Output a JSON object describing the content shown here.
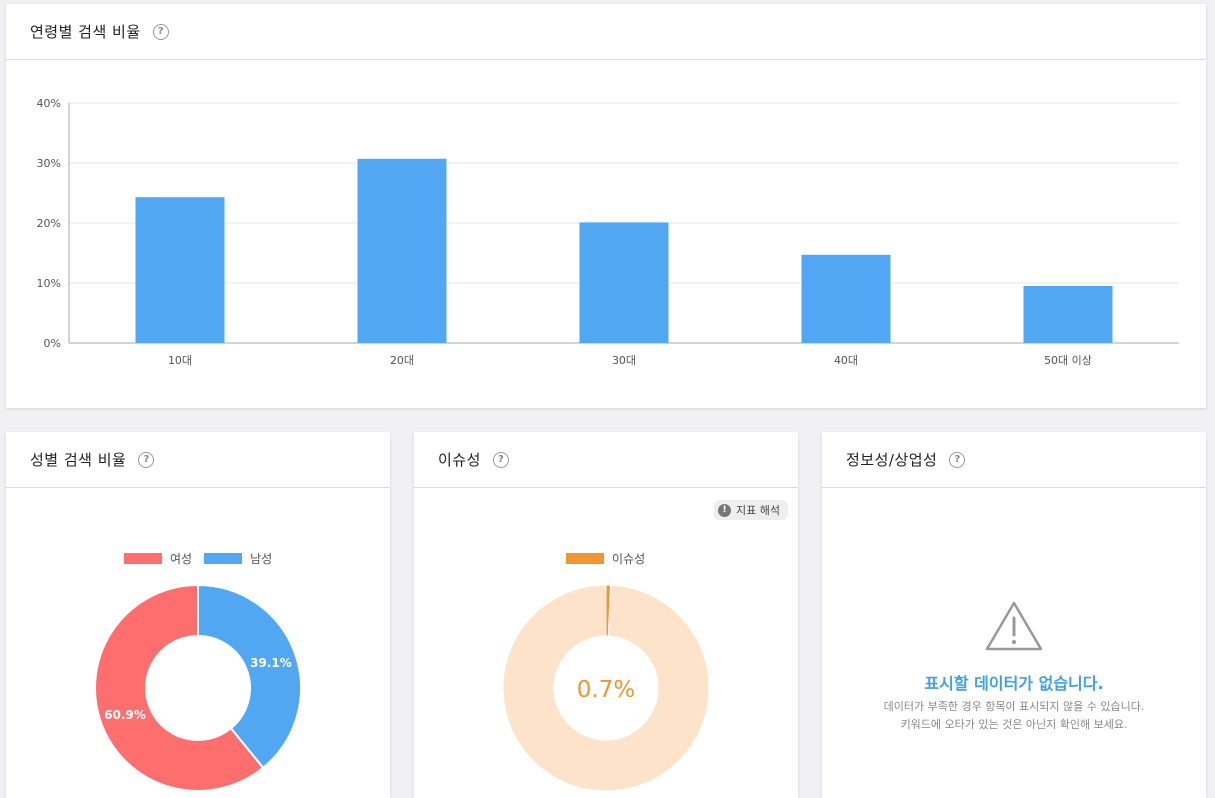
{
  "age_card": {
    "title": "연령별 검색 비율",
    "chart_data": {
      "type": "bar",
      "categories": [
        "10대",
        "20대",
        "30대",
        "40대",
        "50대 이상"
      ],
      "values": [
        24.3,
        30.7,
        20.1,
        14.7,
        9.5
      ],
      "ylim": [
        0,
        40
      ],
      "yticks": [
        "0%",
        "10%",
        "20%",
        "30%",
        "40%"
      ],
      "color": "#52a7f3",
      "grid": true
    }
  },
  "gender_card": {
    "title": "성별 검색 비율",
    "chart_data": {
      "type": "pie",
      "series": [
        {
          "name": "여성",
          "value": 60.9,
          "label": "60.9%",
          "color": "#fd6f6f"
        },
        {
          "name": "남성",
          "value": 39.1,
          "label": "39.1%",
          "color": "#52a7f3"
        }
      ]
    }
  },
  "issue_card": {
    "title": "이슈성",
    "badge_label": "지표 해석",
    "legend_label": "이슈성",
    "center_label": "0.7%",
    "value": 0.7,
    "color": "#ef9632",
    "rest_color": "#fde3c9"
  },
  "info_card": {
    "title": "정보성/상업성",
    "empty_title": "표시할 데이터가 없습니다.",
    "empty_line1": "데이터가 부족한 경우 항목이 표시되지 않을 수 있습니다.",
    "empty_line2": "키워드에 오타가 있는 것은 아닌지 확인해 보세요."
  }
}
